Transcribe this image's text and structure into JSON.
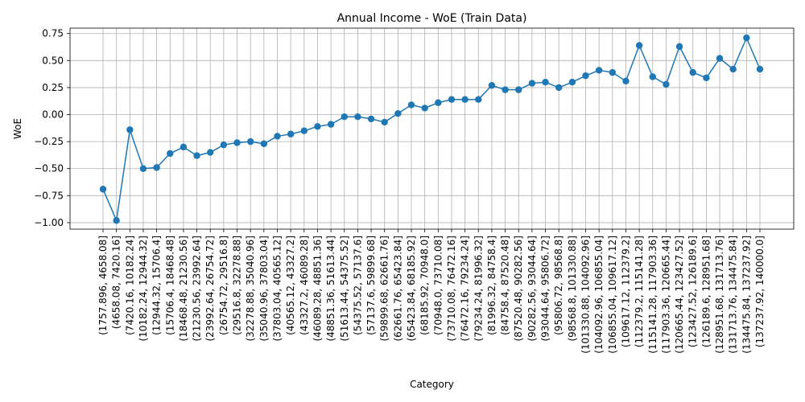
{
  "chart_data": {
    "type": "line",
    "title": "Annual Income - WoE (Train Data)",
    "xlabel": "Category",
    "ylabel": "WoE",
    "ylim": [
      -1.06,
      0.8
    ],
    "yticks": [
      -1.0,
      -0.75,
      -0.5,
      -0.25,
      0.0,
      0.25,
      0.5,
      0.75
    ],
    "ytick_labels": [
      "−1.00",
      "−0.75",
      "−0.50",
      "−0.25",
      "0.00",
      "0.25",
      "0.50",
      "0.75"
    ],
    "grid": true,
    "line_color": "#1f77b4",
    "categories": [
      "(1757.896, 4658.08]",
      "(4658.08, 7420.16]",
      "(7420.16, 10182.24]",
      "(10182.24, 12944.32]",
      "(12944.32, 15706.4]",
      "(15706.4, 18468.48]",
      "(18468.48, 21230.56]",
      "(21230.56, 23992.64]",
      "(23992.64, 26754.72]",
      "(26754.72, 29516.8]",
      "(29516.8, 32278.88]",
      "(32278.88, 35040.96]",
      "(35040.96, 37803.04]",
      "(37803.04, 40565.12]",
      "(40565.12, 43327.2]",
      "(43327.2, 46089.28]",
      "(46089.28, 48851.36]",
      "(48851.36, 51613.44]",
      "(51613.44, 54375.52]",
      "(54375.52, 57137.6]",
      "(57137.6, 59899.68]",
      "(59899.68, 62661.76]",
      "(62661.76, 65423.84]",
      "(65423.84, 68185.92]",
      "(68185.92, 70948.0]",
      "(70948.0, 73710.08]",
      "(73710.08, 76472.16]",
      "(76472.16, 79234.24]",
      "(79234.24, 81996.32]",
      "(81996.32, 84758.4]",
      "(84758.4, 87520.48]",
      "(87520.48, 90282.56]",
      "(90282.56, 93044.64]",
      "(93044.64, 95806.72]",
      "(95806.72, 98568.8]",
      "(98568.8, 101330.88]",
      "(101330.88, 104092.96]",
      "(104092.96, 106855.04]",
      "(106855.04, 109617.12]",
      "(109617.12, 112379.2]",
      "(112379.2, 115141.28]",
      "(115141.28, 117903.36]",
      "(117903.36, 120665.44]",
      "(120665.44, 123427.52]",
      "(123427.52, 126189.6]",
      "(126189.6, 128951.68]",
      "(128951.68, 131713.76]",
      "(131713.76, 134475.84]",
      "(134475.84, 137237.92]",
      "(137237.92, 140000.0]"
    ],
    "values": [
      -0.69,
      -0.98,
      -0.14,
      -0.5,
      -0.49,
      -0.36,
      -0.3,
      -0.38,
      -0.35,
      -0.28,
      -0.26,
      -0.25,
      -0.27,
      -0.2,
      -0.18,
      -0.15,
      -0.11,
      -0.09,
      -0.02,
      -0.02,
      -0.04,
      -0.07,
      0.01,
      0.09,
      0.06,
      0.11,
      0.14,
      0.14,
      0.14,
      0.27,
      0.23,
      0.23,
      0.29,
      0.3,
      0.25,
      0.3,
      0.36,
      0.41,
      0.39,
      0.31,
      0.64,
      0.35,
      0.28,
      0.63,
      0.39,
      0.34,
      0.52,
      0.42,
      0.71,
      0.42
    ]
  }
}
